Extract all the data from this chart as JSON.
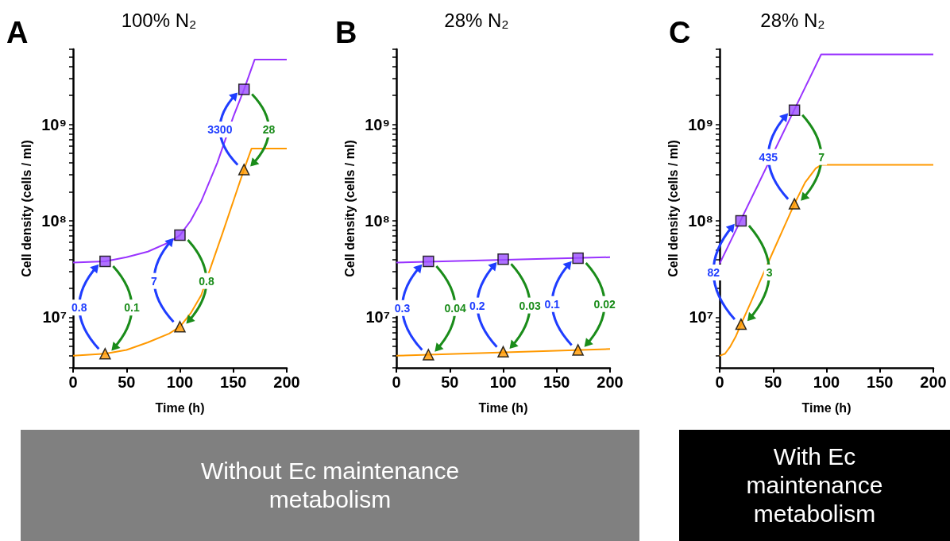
{
  "chart_data": [
    {
      "type": "line",
      "title": "100% N₂",
      "xlabel": "Time (h)",
      "ylabel": "Cell density (cells / ml)",
      "log": "y",
      "grid": false,
      "xlim": [
        0,
        200
      ],
      "xticks": [
        0,
        50,
        100,
        150,
        200
      ],
      "ylim": [
        3000000,
        6000000000
      ],
      "yticks": [
        {
          "value": 3000000,
          "label": null
        },
        {
          "value": 4000000,
          "label": null
        },
        {
          "value": 5000000,
          "label": null
        },
        {
          "value": 6000000,
          "label": null
        },
        {
          "value": 7000000,
          "label": null
        },
        {
          "value": 8000000,
          "label": null
        },
        {
          "value": 9000000,
          "label": null
        },
        {
          "value": 10000000,
          "label": "10⁷"
        },
        {
          "value": 20000000,
          "label": null
        },
        {
          "value": 30000000,
          "label": null
        },
        {
          "value": 40000000,
          "label": null
        },
        {
          "value": 50000000,
          "label": null
        },
        {
          "value": 60000000,
          "label": null
        },
        {
          "value": 70000000,
          "label": null
        },
        {
          "value": 80000000,
          "label": null
        },
        {
          "value": 90000000,
          "label": null
        },
        {
          "value": 100000000,
          "label": "10⁸"
        },
        {
          "value": 200000000,
          "label": null
        },
        {
          "value": 300000000,
          "label": null
        },
        {
          "value": 400000000,
          "label": null
        },
        {
          "value": 500000000,
          "label": null
        },
        {
          "value": 600000000,
          "label": null
        },
        {
          "value": 700000000,
          "label": null
        },
        {
          "value": 800000000,
          "label": null
        },
        {
          "value": 900000000,
          "label": null
        },
        {
          "value": 1000000000,
          "label": "10⁹"
        },
        {
          "value": 2000000000,
          "label": null
        },
        {
          "value": 3000000000,
          "label": null
        },
        {
          "value": 4000000000,
          "label": null
        },
        {
          "value": 5000000000,
          "label": null
        },
        {
          "value": 6000000000,
          "label": null
        }
      ],
      "series": [
        {
          "type": "line",
          "marker": "none",
          "color": "#9933ff",
          "x": [
            0,
            30,
            50,
            70,
            90,
            100,
            110,
            120,
            135,
            150,
            160,
            170,
            200
          ],
          "values": [
            37000000,
            38000000,
            42000000,
            48000000,
            60000000,
            71000000,
            100000000,
            160000000,
            400000000,
            1200000000,
            2300000000,
            4700000000,
            4700000000
          ]
        },
        {
          "type": "line",
          "marker": "none",
          "color": "#ff9900",
          "x": [
            0,
            30,
            50,
            70,
            90,
            100,
            110,
            120,
            130,
            140,
            150,
            160,
            167,
            200
          ],
          "values": [
            4000000,
            4200000,
            4600000,
            5500000,
            6800000,
            8000000,
            11000000,
            17000000,
            36000000,
            75000000,
            160000000,
            340000000,
            560000000,
            560000000
          ]
        },
        {
          "type": "scatter",
          "marker": "square",
          "color": "#9b4dff",
          "x": [
            30,
            100,
            160
          ],
          "values": [
            38000000,
            71000000,
            2300000000
          ]
        },
        {
          "type": "scatter",
          "marker": "triangle",
          "color": "#ff9900",
          "x": [
            30,
            100,
            160
          ],
          "values": [
            4200000,
            8000000,
            340000000
          ]
        }
      ],
      "annotations": [
        "A",
        "Without Ec maintenance metabolism",
        "0.8",
        "0.1",
        "7",
        "0.8",
        "3300",
        "28"
      ]
    },
    {
      "type": "line",
      "title": "28% N₂",
      "xlabel": "Time (h)",
      "ylabel": "Cell density (cells / ml)",
      "log": "y",
      "grid": false,
      "xlim": [
        0,
        200
      ],
      "xticks": [
        0,
        50,
        100,
        150,
        200
      ],
      "ylim": [
        3000000,
        6000000000
      ],
      "yticks": [
        {
          "value": 3000000,
          "label": null
        },
        {
          "value": 4000000,
          "label": null
        },
        {
          "value": 5000000,
          "label": null
        },
        {
          "value": 6000000,
          "label": null
        },
        {
          "value": 7000000,
          "label": null
        },
        {
          "value": 8000000,
          "label": null
        },
        {
          "value": 9000000,
          "label": null
        },
        {
          "value": 10000000,
          "label": "10⁷"
        },
        {
          "value": 20000000,
          "label": null
        },
        {
          "value": 30000000,
          "label": null
        },
        {
          "value": 40000000,
          "label": null
        },
        {
          "value": 50000000,
          "label": null
        },
        {
          "value": 60000000,
          "label": null
        },
        {
          "value": 70000000,
          "label": null
        },
        {
          "value": 80000000,
          "label": null
        },
        {
          "value": 90000000,
          "label": null
        },
        {
          "value": 100000000,
          "label": "10⁸"
        },
        {
          "value": 200000000,
          "label": null
        },
        {
          "value": 300000000,
          "label": null
        },
        {
          "value": 400000000,
          "label": null
        },
        {
          "value": 500000000,
          "label": null
        },
        {
          "value": 600000000,
          "label": null
        },
        {
          "value": 700000000,
          "label": null
        },
        {
          "value": 800000000,
          "label": null
        },
        {
          "value": 900000000,
          "label": null
        },
        {
          "value": 1000000000,
          "label": "10⁹"
        },
        {
          "value": 2000000000,
          "label": null
        },
        {
          "value": 3000000000,
          "label": null
        },
        {
          "value": 4000000000,
          "label": null
        },
        {
          "value": 5000000000,
          "label": null
        },
        {
          "value": 6000000000,
          "label": null
        }
      ],
      "series": [
        {
          "type": "line",
          "marker": "none",
          "color": "#9933ff",
          "x": [
            0,
            200
          ],
          "values": [
            37000000,
            42000000
          ]
        },
        {
          "type": "line",
          "marker": "none",
          "color": "#ff9900",
          "x": [
            0,
            200
          ],
          "values": [
            4000000,
            4700000
          ]
        },
        {
          "type": "scatter",
          "marker": "square",
          "color": "#9b4dff",
          "x": [
            30,
            100,
            170
          ],
          "values": [
            38000000,
            40000000,
            41000000
          ]
        },
        {
          "type": "scatter",
          "marker": "triangle",
          "color": "#ff9900",
          "x": [
            30,
            100,
            170
          ],
          "values": [
            4100000,
            4400000,
            4600000
          ]
        }
      ],
      "annotations": [
        "B",
        "0.3",
        "0.04",
        "0.2",
        "0.03",
        "0.1",
        "0.02"
      ]
    },
    {
      "type": "line",
      "title": "28% N₂",
      "xlabel": "Time (h)",
      "ylabel": "Cell density (cells / ml)",
      "log": "y",
      "grid": false,
      "xlim": [
        0,
        200
      ],
      "xticks": [
        0,
        50,
        100,
        150,
        200
      ],
      "ylim": [
        3000000,
        6000000000
      ],
      "yticks": [
        {
          "value": 3000000,
          "label": null
        },
        {
          "value": 4000000,
          "label": null
        },
        {
          "value": 5000000,
          "label": null
        },
        {
          "value": 6000000,
          "label": null
        },
        {
          "value": 7000000,
          "label": null
        },
        {
          "value": 8000000,
          "label": null
        },
        {
          "value": 9000000,
          "label": null
        },
        {
          "value": 10000000,
          "label": "10⁷"
        },
        {
          "value": 20000000,
          "label": null
        },
        {
          "value": 30000000,
          "label": null
        },
        {
          "value": 40000000,
          "label": null
        },
        {
          "value": 50000000,
          "label": null
        },
        {
          "value": 60000000,
          "label": null
        },
        {
          "value": 70000000,
          "label": null
        },
        {
          "value": 80000000,
          "label": null
        },
        {
          "value": 90000000,
          "label": null
        },
        {
          "value": 100000000,
          "label": "10⁸"
        },
        {
          "value": 200000000,
          "label": null
        },
        {
          "value": 300000000,
          "label": null
        },
        {
          "value": 400000000,
          "label": null
        },
        {
          "value": 500000000,
          "label": null
        },
        {
          "value": 600000000,
          "label": null
        },
        {
          "value": 700000000,
          "label": null
        },
        {
          "value": 800000000,
          "label": null
        },
        {
          "value": 900000000,
          "label": null
        },
        {
          "value": 1000000000,
          "label": "10⁹"
        },
        {
          "value": 2000000000,
          "label": null
        },
        {
          "value": 3000000000,
          "label": null
        },
        {
          "value": 4000000000,
          "label": null
        },
        {
          "value": 5000000000,
          "label": null
        },
        {
          "value": 6000000000,
          "label": null
        }
      ],
      "series": [
        {
          "type": "line",
          "marker": "none",
          "color": "#9933ff",
          "x": [
            0,
            95,
            200
          ],
          "values": [
            36000000,
            5300000000,
            5300000000
          ]
        },
        {
          "type": "line",
          "marker": "none",
          "color": "#ff9900",
          "x": [
            0,
            5,
            10,
            15,
            20,
            30,
            40,
            50,
            60,
            70,
            80,
            90,
            95,
            200
          ],
          "values": [
            4000000,
            4200000,
            5000000,
            6300000,
            8500000,
            15000000,
            27000000,
            48000000,
            85000000,
            150000000,
            250000000,
            350000000,
            380000000,
            380000000
          ]
        },
        {
          "type": "scatter",
          "marker": "square",
          "color": "#9b4dff",
          "x": [
            20,
            70
          ],
          "values": [
            100000000,
            1400000000
          ]
        },
        {
          "type": "scatter",
          "marker": "triangle",
          "color": "#ff9900",
          "x": [
            20,
            70
          ],
          "values": [
            8500000,
            150000000
          ]
        }
      ],
      "annotations": [
        "C",
        "With Ec maintenance metabolism",
        "82",
        "3",
        "435",
        "7"
      ]
    }
  ]
}
